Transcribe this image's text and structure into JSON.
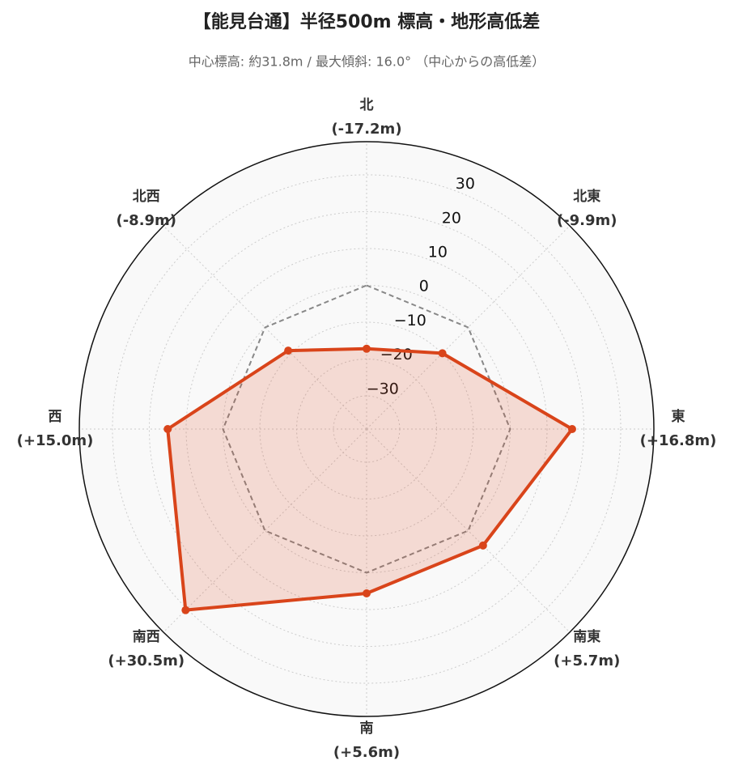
{
  "chart_data": {
    "type": "radar",
    "title": "【能見台通】半径500m 標高・地形高低差",
    "subtitle": "中心標高: 約31.8m / 最大傾斜: 16.0° （中心からの高低差）",
    "categories": [
      "北",
      "北東",
      "東",
      "南東",
      "南",
      "南西",
      "西",
      "北西"
    ],
    "values": [
      -17.2,
      -9.9,
      16.8,
      5.7,
      5.6,
      30.5,
      15.0,
      -8.9
    ],
    "value_labels": [
      "(-17.2m)",
      "(-9.9m)",
      "(+16.8m)",
      "(+5.7m)",
      "(+5.6m)",
      "(+30.5m)",
      "(+15.0m)",
      "(-8.9m)"
    ],
    "color": "#d9441a",
    "baseline": 0,
    "ylim": [
      -39,
      39
    ],
    "yticks": [
      {
        "value": -30,
        "label": "−30"
      },
      {
        "value": -20,
        "label": "−20"
      },
      {
        "value": -10,
        "label": "−10"
      },
      0,
      10,
      20,
      30
    ],
    "grid": true
  }
}
